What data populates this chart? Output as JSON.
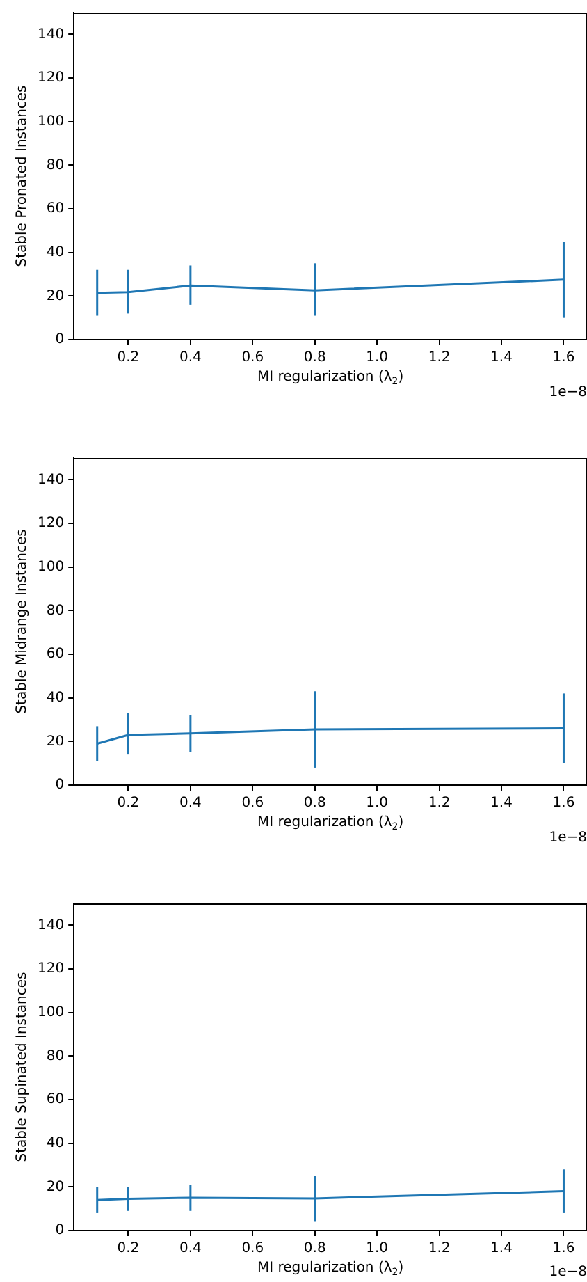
{
  "chart_data": [
    {
      "type": "line",
      "ylabel": "Stable Pronated Instances",
      "xlabel": "MI regularization (λ$_{2}$)",
      "annotations": [
        "1e−8"
      ],
      "x": [
        0.1,
        0.2,
        0.4,
        0.8,
        1.6
      ],
      "values": [
        21.5,
        21.8,
        24.8,
        22.6,
        27.5
      ],
      "errors": [
        [
          11,
          32
        ],
        [
          12,
          32
        ],
        [
          16,
          34
        ],
        [
          11,
          35
        ],
        [
          10,
          45
        ]
      ],
      "color": "#1f77b4",
      "xlim": [
        0.025,
        1.675
      ],
      "xticks": [
        {
          "value": 0.2,
          "label": "0.2"
        },
        {
          "value": 0.4,
          "label": "0.4"
        },
        {
          "value": 0.6,
          "label": "0.6"
        },
        {
          "value": 0.8,
          "label": "0.8"
        },
        {
          "value": 1.0,
          "label": "1.0"
        },
        {
          "value": 1.2,
          "label": "1.2"
        },
        {
          "value": 1.4,
          "label": "1.4"
        },
        {
          "value": 1.6,
          "label": "1.6"
        }
      ],
      "ylim": [
        0,
        150
      ],
      "yticks": [
        0,
        20,
        40,
        60,
        80,
        100,
        120,
        140
      ],
      "grid": false,
      "legend": false,
      "marker": "none"
    },
    {
      "type": "line",
      "ylabel": "Stable Midrange Instances",
      "xlabel": "MI regularization (λ$_{2}$)",
      "annotations": [
        "1e−8"
      ],
      "x": [
        0.1,
        0.2,
        0.4,
        0.8,
        1.6
      ],
      "values": [
        19,
        23,
        23.7,
        25.5,
        26
      ],
      "errors": [
        [
          11,
          27
        ],
        [
          14,
          33
        ],
        [
          15,
          32
        ],
        [
          8,
          43
        ],
        [
          10,
          42
        ]
      ],
      "color": "#1f77b4",
      "xlim": [
        0.025,
        1.675
      ],
      "xticks": [
        {
          "value": 0.2,
          "label": "0.2"
        },
        {
          "value": 0.4,
          "label": "0.4"
        },
        {
          "value": 0.6,
          "label": "0.6"
        },
        {
          "value": 0.8,
          "label": "0.8"
        },
        {
          "value": 1.0,
          "label": "1.0"
        },
        {
          "value": 1.2,
          "label": "1.2"
        },
        {
          "value": 1.4,
          "label": "1.4"
        },
        {
          "value": 1.6,
          "label": "1.6"
        }
      ],
      "ylim": [
        0,
        150
      ],
      "yticks": [
        0,
        20,
        40,
        60,
        80,
        100,
        120,
        140
      ],
      "grid": false,
      "legend": false,
      "marker": "none"
    },
    {
      "type": "line",
      "ylabel": "Stable Supinated Instances",
      "xlabel": "MI regularization (λ$_{2}$)",
      "annotations": [
        "1e−8"
      ],
      "x": [
        0.1,
        0.2,
        0.4,
        0.8,
        1.6
      ],
      "values": [
        14,
        14.5,
        15,
        14.7,
        18
      ],
      "errors": [
        [
          8,
          20
        ],
        [
          9,
          20
        ],
        [
          9,
          21
        ],
        [
          4,
          25
        ],
        [
          8,
          28
        ]
      ],
      "color": "#1f77b4",
      "xlim": [
        0.025,
        1.675
      ],
      "xticks": [
        {
          "value": 0.2,
          "label": "0.2"
        },
        {
          "value": 0.4,
          "label": "0.4"
        },
        {
          "value": 0.6,
          "label": "0.6"
        },
        {
          "value": 0.8,
          "label": "0.8"
        },
        {
          "value": 1.0,
          "label": "1.0"
        },
        {
          "value": 1.2,
          "label": "1.2"
        },
        {
          "value": 1.4,
          "label": "1.4"
        },
        {
          "value": 1.6,
          "label": "1.6"
        }
      ],
      "ylim": [
        0,
        150
      ],
      "yticks": [
        0,
        20,
        40,
        60,
        80,
        100,
        120,
        140
      ],
      "grid": false,
      "legend": false,
      "marker": "none"
    }
  ]
}
